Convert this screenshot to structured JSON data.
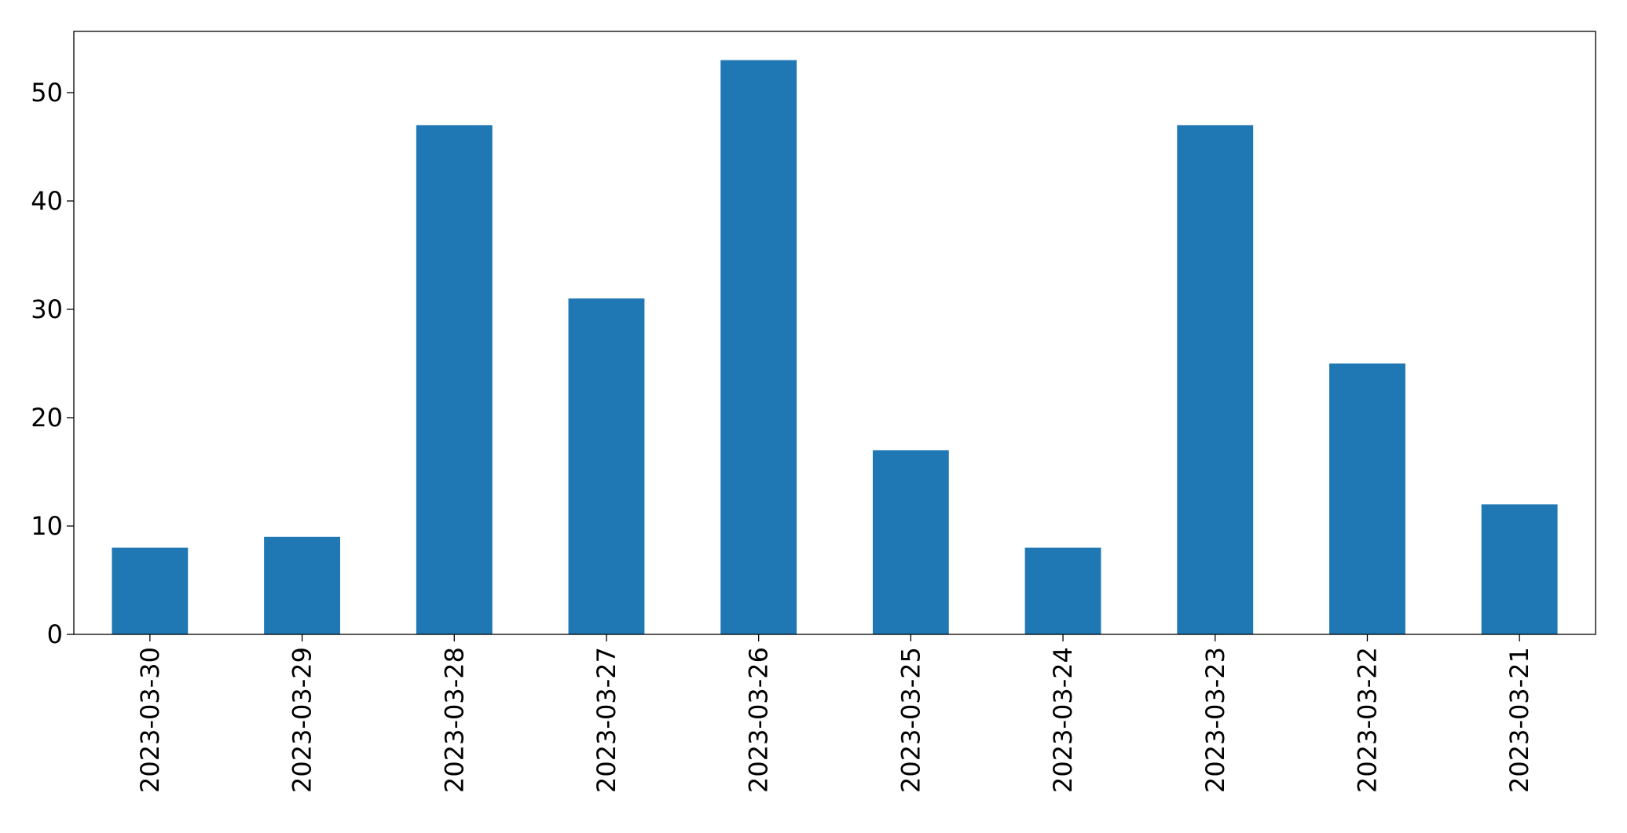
{
  "chart_data": {
    "type": "bar",
    "categories": [
      "2023-03-30",
      "2023-03-29",
      "2023-03-28",
      "2023-03-27",
      "2023-03-26",
      "2023-03-25",
      "2023-03-24",
      "2023-03-23",
      "2023-03-22",
      "2023-03-21"
    ],
    "values": [
      8,
      9,
      47,
      31,
      53,
      17,
      8,
      47,
      25,
      12
    ],
    "color": "#1f77b4",
    "ylim": [
      0,
      55.65
    ],
    "yticks": [
      0,
      10,
      20,
      30,
      40,
      50
    ],
    "grid": false
  }
}
